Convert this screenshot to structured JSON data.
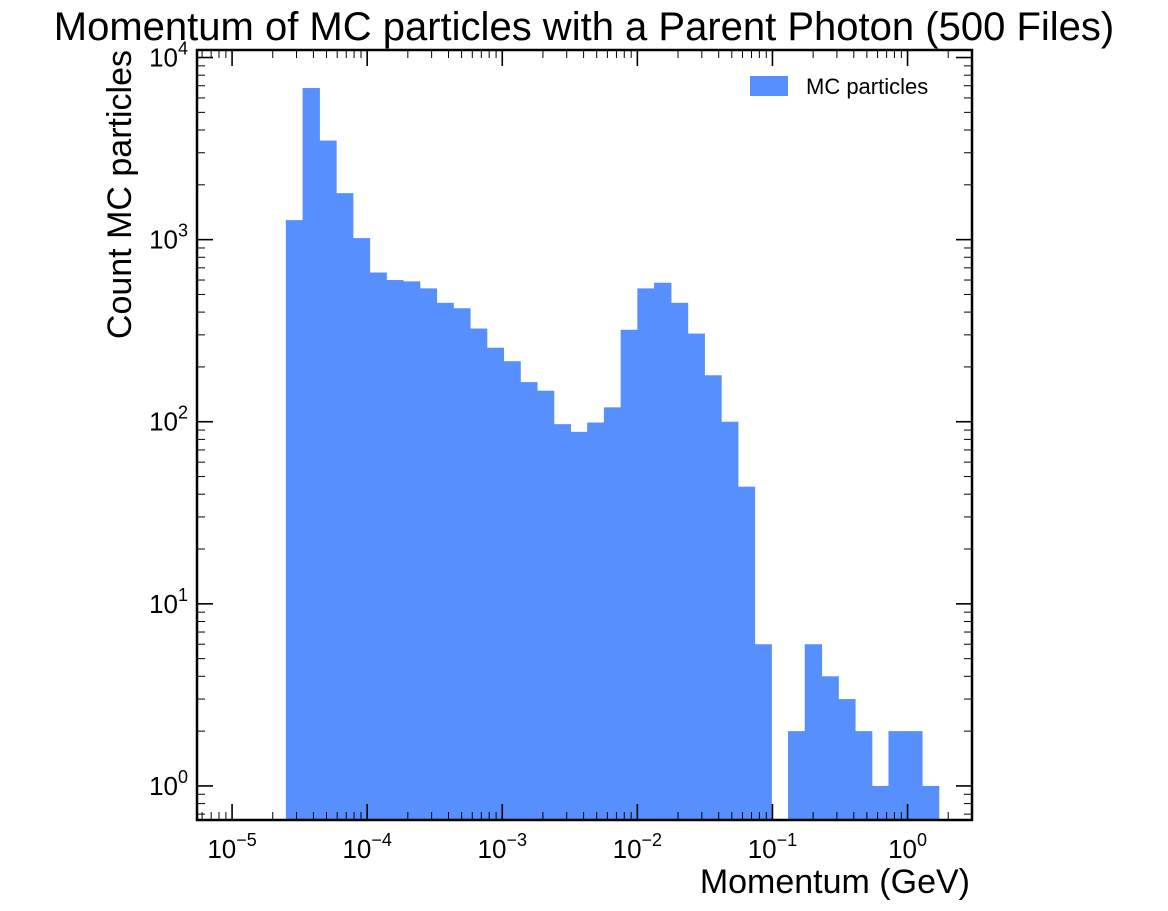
{
  "chart_data": {
    "type": "bar",
    "title": "Momentum of MC particles with a Parent Photon (500 Files)",
    "xlabel": "Momentum (GeV)",
    "ylabel": "Count MC particles",
    "x_scale": "log",
    "y_scale": "log",
    "xlim": [
      5.5e-06,
      3.0
    ],
    "ylim": [
      0.65,
      11000
    ],
    "x_ticks": [
      {
        "base": "10",
        "exp": "−5",
        "value": 1e-05
      },
      {
        "base": "10",
        "exp": "−4",
        "value": 0.0001
      },
      {
        "base": "10",
        "exp": "−3",
        "value": 0.001
      },
      {
        "base": "10",
        "exp": "−2",
        "value": 0.01
      },
      {
        "base": "10",
        "exp": "−1",
        "value": 0.1
      },
      {
        "base": "10",
        "exp": "0",
        "value": 1
      }
    ],
    "y_ticks": [
      {
        "base": "10",
        "exp": "0",
        "value": 1
      },
      {
        "base": "10",
        "exp": "1",
        "value": 10
      },
      {
        "base": "10",
        "exp": "2",
        "value": 100
      },
      {
        "base": "10",
        "exp": "3",
        "value": 1000
      },
      {
        "base": "10",
        "exp": "4",
        "value": 10000
      }
    ],
    "bin_start": 2.5e-05,
    "bin_end": 1.7,
    "counts": [
      1280,
      6800,
      3500,
      1800,
      1020,
      660,
      600,
      590,
      540,
      450,
      420,
      325,
      255,
      215,
      165,
      148,
      97,
      88,
      99,
      120,
      320,
      540,
      580,
      450,
      305,
      180,
      100,
      44,
      6,
      0,
      2,
      6,
      4,
      3,
      2,
      1,
      2,
      2,
      1
    ],
    "legend": {
      "label": "MC particles",
      "position": "top-right"
    },
    "colors": {
      "fill": "#5790fc",
      "axis": "#000000"
    },
    "grid": false
  }
}
